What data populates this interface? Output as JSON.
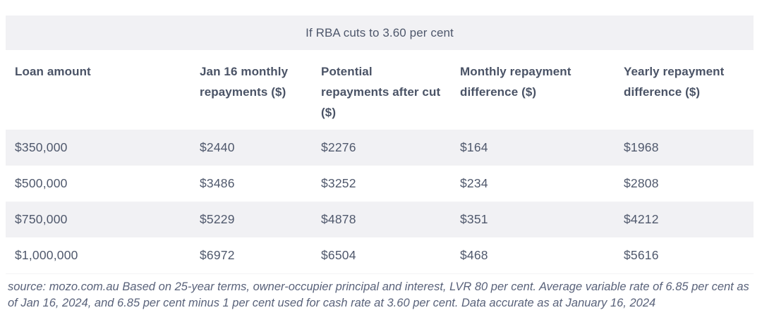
{
  "table": {
    "banner": "If RBA cuts to 3.60 per cent",
    "columns": [
      "Loan amount",
      "Jan 16 monthly repayments ($)",
      "Potential repayments after cut ($)",
      "Monthly repayment difference ($)",
      "Yearly repayment difference ($)"
    ],
    "rows": [
      [
        "$350,000",
        "$2440",
        "$2276",
        "$164",
        "$1968"
      ],
      [
        "$500,000",
        "$3486",
        "$3252",
        "$234",
        "$2808"
      ],
      [
        "$750,000",
        "$5229",
        "$4878",
        "$351",
        "$4212"
      ],
      [
        "$1,000,000",
        "$6972",
        "$6504",
        "$468",
        "$5616"
      ]
    ],
    "source_note": "source: mozo.com.au Based on 25-year terms, owner-occupier principal and interest, LVR 80 per cent. Average variable rate of 6.85 per cent as of Jan 16, 2024, and 6.85 per cent minus 1 per cent used for cash rate at 3.60 per cent. Data accurate as at January 16, 2024"
  },
  "colors": {
    "stripe_and_banner_bg": "#f1f1f4",
    "header_text": "#4a5366",
    "body_text": "#4f586c",
    "source_text": "#59627a",
    "page_bg": "#ffffff"
  },
  "chart_data": {
    "type": "table",
    "title": "If RBA cuts to 3.60 per cent",
    "columns": [
      "Loan amount",
      "Jan 16 monthly repayments ($)",
      "Potential repayments after cut ($)",
      "Monthly repayment difference ($)",
      "Yearly repayment difference ($)"
    ],
    "rows": [
      {
        "loan_amount": 350000,
        "jan16_monthly_repayment": 2440,
        "potential_repayment_after_cut": 2276,
        "monthly_difference": 164,
        "yearly_difference": 1968
      },
      {
        "loan_amount": 500000,
        "jan16_monthly_repayment": 3486,
        "potential_repayment_after_cut": 3252,
        "monthly_difference": 234,
        "yearly_difference": 2808
      },
      {
        "loan_amount": 750000,
        "jan16_monthly_repayment": 5229,
        "potential_repayment_after_cut": 4878,
        "monthly_difference": 351,
        "yearly_difference": 4212
      },
      {
        "loan_amount": 1000000,
        "jan16_monthly_repayment": 6972,
        "potential_repayment_after_cut": 6504,
        "monthly_difference": 468,
        "yearly_difference": 5616
      }
    ],
    "source": "mozo.com.au",
    "notes": "Based on 25-year terms, owner-occupier principal and interest, LVR 80 per cent. Average variable rate of 6.85 per cent as of Jan 16, 2024, and 6.85 per cent minus 1 per cent used for cash rate at 3.60 per cent. Data accurate as at January 16, 2024"
  }
}
